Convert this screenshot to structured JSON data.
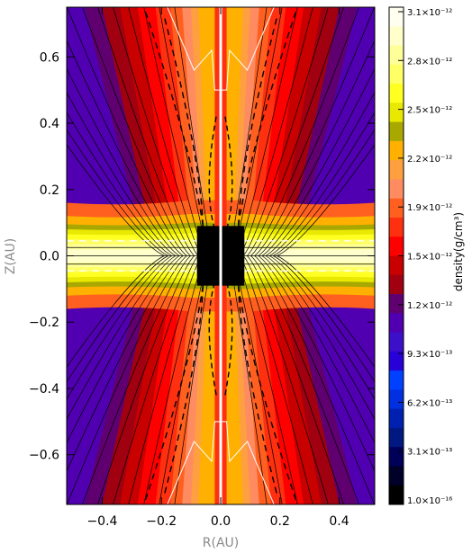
{
  "chart_data": {
    "type": "heatmap",
    "title": "",
    "xlabel": "R(AU)",
    "ylabel": "Z(AU)",
    "xlim": [
      -0.52,
      0.52
    ],
    "ylim": [
      -0.75,
      0.75
    ],
    "x_ticks": [
      -0.4,
      -0.2,
      0.0,
      0.2,
      0.4
    ],
    "x_tick_labels": [
      "−0.4",
      "−0.2",
      "0.0",
      "0.2",
      "0.4"
    ],
    "y_ticks": [
      -0.6,
      -0.4,
      -0.2,
      0.0,
      0.2,
      0.4,
      0.6
    ],
    "y_tick_labels": [
      "−0.6",
      "−0.4",
      "−0.2",
      "0.0",
      "0.2",
      "0.4",
      "0.6"
    ],
    "colorbar": {
      "label": "density(g/cm³)",
      "tick_labels": [
        "3.1×10⁻¹²",
        "2.8×10⁻¹²",
        "2.5×10⁻¹²",
        "2.2×10⁻¹²",
        "1.9×10⁻¹²",
        "1.5×10⁻¹²",
        "1.2×10⁻¹²",
        "9.3×10⁻¹³",
        "6.2×10⁻¹³",
        "3.1×10⁻¹³",
        "1.0×10⁻¹⁶"
      ],
      "levels_top_to_bottom": [
        "#fffff0",
        "#ffffcc",
        "#ffff99",
        "#ffff66",
        "#ffff22",
        "#e8e800",
        "#a8a800",
        "#ffb000",
        "#ffa040",
        "#ff8c60",
        "#ff6020",
        "#ff3010",
        "#ff0000",
        "#c80000",
        "#a00010",
        "#600070",
        "#5000b0",
        "#3c10c8",
        "#2800d8",
        "#0040ff",
        "#0030e0",
        "#0020b0",
        "#001880",
        "#000058",
        "#000028",
        "#000000"
      ]
    },
    "central_box": {
      "r_range": [
        -0.08,
        0.08
      ],
      "z_range": [
        -0.09,
        0.09
      ],
      "color": "#000000"
    },
    "contour_colors": {
      "field_lines": "#000000",
      "density": "#c80000",
      "outer": "#ffffff"
    }
  }
}
